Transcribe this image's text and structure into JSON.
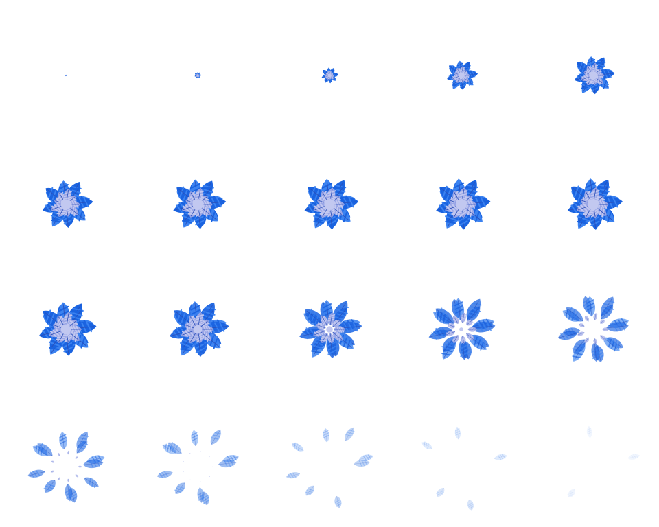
{
  "spritesheet": {
    "columns": 5,
    "rows": 4,
    "frame_count": 20,
    "colors": {
      "background": "#ffffff",
      "feather_outer": "#1a63e0",
      "feather_mid": "#3b82f0",
      "feather_inner": "#9aa6e6",
      "feather_pale": "#c2c8f0",
      "shaft": "#2a4fb8"
    },
    "frames": [
      {
        "index": 1,
        "phase": "grow",
        "scale": 0.03,
        "spread": 0.0,
        "fade": 1.0
      },
      {
        "index": 2,
        "phase": "grow",
        "scale": 0.12,
        "spread": 0.0,
        "fade": 1.0
      },
      {
        "index": 3,
        "phase": "grow",
        "scale": 0.3,
        "spread": 0.0,
        "fade": 1.0
      },
      {
        "index": 4,
        "phase": "grow",
        "scale": 0.55,
        "spread": 0.0,
        "fade": 1.0
      },
      {
        "index": 5,
        "phase": "grow",
        "scale": 0.72,
        "spread": 0.0,
        "fade": 1.0
      },
      {
        "index": 6,
        "phase": "full",
        "scale": 0.9,
        "spread": 0.0,
        "fade": 1.0
      },
      {
        "index": 7,
        "phase": "full",
        "scale": 0.94,
        "spread": 0.0,
        "fade": 1.0
      },
      {
        "index": 8,
        "phase": "full",
        "scale": 0.96,
        "spread": 0.0,
        "fade": 1.0
      },
      {
        "index": 9,
        "phase": "full",
        "scale": 0.97,
        "spread": 0.0,
        "fade": 1.0
      },
      {
        "index": 10,
        "phase": "full",
        "scale": 0.98,
        "spread": 0.0,
        "fade": 1.0
      },
      {
        "index": 11,
        "phase": "burst",
        "scale": 1.0,
        "spread": 0.04,
        "fade": 1.0
      },
      {
        "index": 12,
        "phase": "burst",
        "scale": 1.0,
        "spread": 0.1,
        "fade": 0.95
      },
      {
        "index": 13,
        "phase": "burst",
        "scale": 1.0,
        "spread": 0.2,
        "fade": 0.85
      },
      {
        "index": 14,
        "phase": "burst",
        "scale": 1.0,
        "spread": 0.32,
        "fade": 0.75
      },
      {
        "index": 15,
        "phase": "burst",
        "scale": 1.0,
        "spread": 0.45,
        "fade": 0.65
      },
      {
        "index": 16,
        "phase": "scatter",
        "scale": 1.0,
        "spread": 0.6,
        "fade": 0.55
      },
      {
        "index": 17,
        "phase": "scatter",
        "scale": 1.0,
        "spread": 0.72,
        "fade": 0.42
      },
      {
        "index": 18,
        "phase": "scatter",
        "scale": 1.0,
        "spread": 0.85,
        "fade": 0.28
      },
      {
        "index": 19,
        "phase": "scatter",
        "scale": 1.0,
        "spread": 0.95,
        "fade": 0.16
      },
      {
        "index": 20,
        "phase": "scatter",
        "scale": 1.0,
        "spread": 1.0,
        "fade": 0.07
      }
    ]
  }
}
